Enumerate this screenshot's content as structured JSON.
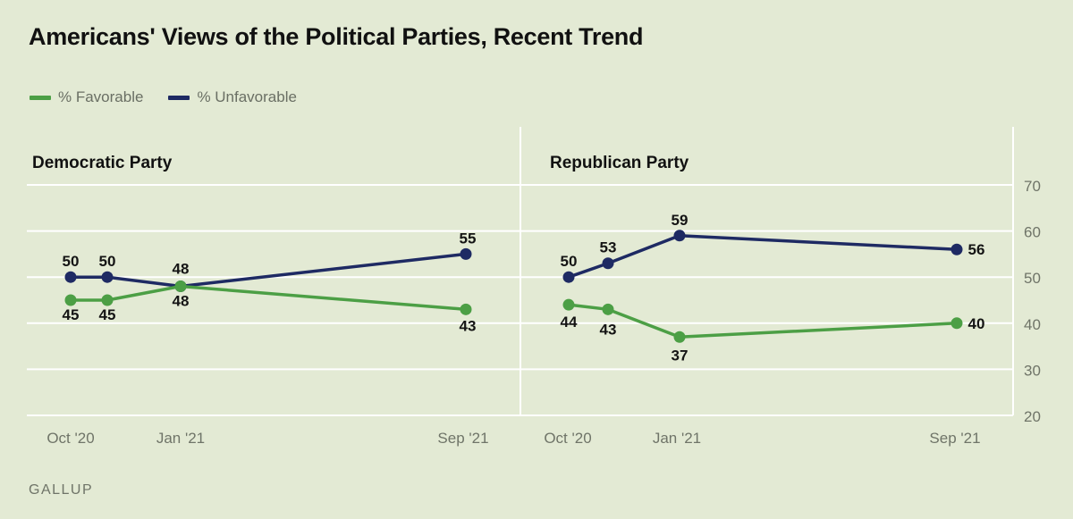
{
  "title": "Americans' Views of the Political Parties, Recent Trend",
  "legend": [
    {
      "label": "% Favorable",
      "color": "#4c9f45"
    },
    {
      "label": "% Unfavorable",
      "color": "#1e2a63"
    }
  ],
  "source": "GALLUP",
  "chart_data": [
    {
      "type": "line",
      "title": "Democratic Party",
      "x": [
        "Oct '20",
        "Oct '20 (late)",
        "Jan '21",
        "Sep '21"
      ],
      "x_tick_labels": [
        "Oct '20",
        "Jan '21",
        "Sep '21"
      ],
      "series": [
        {
          "name": "% Favorable",
          "color": "#4c9f45",
          "values": [
            45,
            45,
            48,
            43
          ],
          "labels": [
            "45",
            "45",
            "48",
            "43"
          ]
        },
        {
          "name": "% Unfavorable",
          "color": "#1e2a63",
          "values": [
            50,
            50,
            48,
            55
          ],
          "labels": [
            "50",
            "50",
            "48",
            "55"
          ]
        }
      ],
      "ylim": [
        20,
        70
      ],
      "grid": true
    },
    {
      "type": "line",
      "title": "Republican Party",
      "x": [
        "Oct '20",
        "Oct '20 (late)",
        "Jan '21",
        "Sep '21"
      ],
      "x_tick_labels": [
        "Oct '20",
        "Jan '21",
        "Sep '21"
      ],
      "series": [
        {
          "name": "% Favorable",
          "color": "#4c9f45",
          "values": [
            44,
            43,
            37,
            40
          ],
          "labels": [
            "44",
            "43",
            "37",
            "40"
          ]
        },
        {
          "name": "% Unfavorable",
          "color": "#1e2a63",
          "values": [
            50,
            53,
            59,
            56
          ],
          "labels": [
            "50",
            "53",
            "59",
            "56"
          ]
        }
      ],
      "ylim": [
        20,
        70
      ],
      "y_ticks": [
        20,
        30,
        40,
        50,
        60,
        70
      ],
      "y_axis_position": "right",
      "grid": true
    }
  ]
}
